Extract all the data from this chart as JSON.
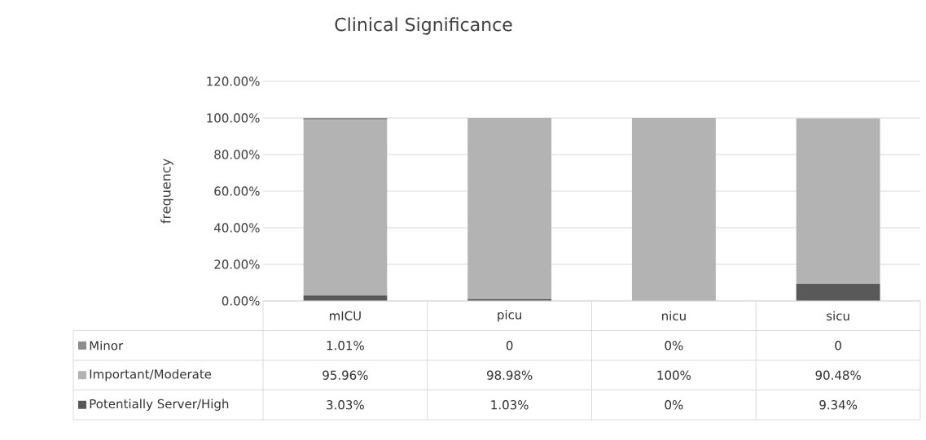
{
  "chart_data": {
    "type": "bar",
    "stacked": true,
    "title": "Clinical Significance",
    "ylabel": "frequency",
    "categories": [
      "mICU",
      "picu",
      "nicu",
      "sicu"
    ],
    "series": [
      {
        "name": "Potentially Server/High",
        "color": "#595959",
        "values": [
          3.03,
          1.03,
          0,
          9.34
        ],
        "value_labels": [
          "3.03%",
          "1.03%",
          "0%",
          "9.34%"
        ]
      },
      {
        "name": "Important/Moderate",
        "color": "#b3b3b3",
        "values": [
          95.96,
          98.98,
          100,
          90.48
        ],
        "value_labels": [
          "95.96%",
          "98.98%",
          "100%",
          "90.48%"
        ]
      },
      {
        "name": "Minor",
        "color": "#8c8c8c",
        "values": [
          1.01,
          0,
          0,
          0
        ],
        "value_labels": [
          "1.01%",
          "0",
          "0%",
          "0"
        ]
      }
    ],
    "ylim": [
      0,
      120
    ],
    "yticks": [
      {
        "value": 0,
        "label": "0.00%"
      },
      {
        "value": 20,
        "label": "20.00%"
      },
      {
        "value": 40,
        "label": "40.00%"
      },
      {
        "value": 60,
        "label": "60.00%"
      },
      {
        "value": 80,
        "label": "80.00%"
      },
      {
        "value": 100,
        "label": "100.00%"
      },
      {
        "value": 120,
        "label": "120.00%"
      }
    ],
    "grid": "y",
    "legend": "bottom"
  }
}
